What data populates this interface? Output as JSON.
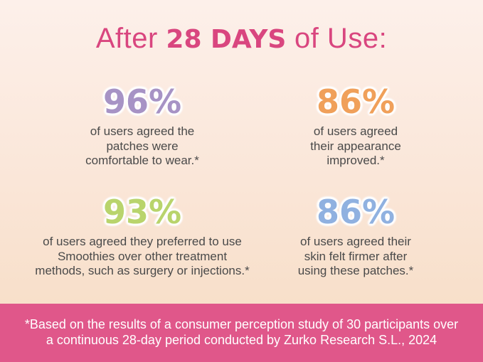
{
  "title": {
    "prefix": "After ",
    "highlight": "28 DAYS",
    "suffix": " of Use:"
  },
  "stats": [
    {
      "value": "96%",
      "color": "#a793c5",
      "lines": [
        "of users agreed the",
        "patches were",
        "comfortable to wear.*"
      ]
    },
    {
      "value": "86%",
      "color": "#f0a05a",
      "lines": [
        "of users agreed",
        "their appearance",
        "improved.*"
      ]
    },
    {
      "value": "93%",
      "color": "#b9d46c",
      "lines": [
        "of users agreed they preferred to use",
        "Smoothies over other treatment",
        "methods, such as surgery or injections.*"
      ]
    },
    {
      "value": "86%",
      "color": "#90b1e0",
      "lines": [
        "of users agreed their",
        "skin felt firmer after",
        "using these patches.*"
      ]
    }
  ],
  "footnote": {
    "lines": [
      "*Based on the results of a consumer perception study of 30 participants over",
      "a continuous 28-day period conducted by Zurko Research S.L., 2024"
    ]
  },
  "colors": {
    "accent": "#d9467f",
    "banner": "#e0578a"
  }
}
